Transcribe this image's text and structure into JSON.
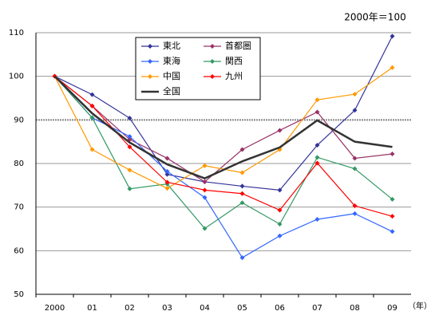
{
  "chart_data": {
    "type": "line",
    "annotation": "2000年＝100",
    "x_label": "（年）",
    "categories": [
      "2000",
      "01",
      "02",
      "03",
      "04",
      "05",
      "06",
      "07",
      "08",
      "09"
    ],
    "series": [
      {
        "name": "東北",
        "color": "#333399",
        "marker": "diamond",
        "values": [
          100,
          95.8,
          90.4,
          77.5,
          75.8,
          74.8,
          73.9,
          84.2,
          92.2,
          109.2
        ]
      },
      {
        "name": "首都圏",
        "color": "#993366",
        "marker": "diamond",
        "values": [
          100,
          93.2,
          85.5,
          81.2,
          75.8,
          83.2,
          87.6,
          91.8,
          81.2,
          82.2
        ]
      },
      {
        "name": "東海",
        "color": "#3366ff",
        "marker": "diamond",
        "values": [
          100,
          90.5,
          86.2,
          78.2,
          72.2,
          58.4,
          63.4,
          67.2,
          68.5,
          64.4
        ]
      },
      {
        "name": "関西",
        "color": "#339966",
        "marker": "diamond",
        "values": [
          100,
          90.5,
          74.2,
          75.3,
          65.1,
          71.0,
          66.1,
          81.4,
          78.8,
          71.8
        ]
      },
      {
        "name": "中国",
        "color": "#ff9900",
        "marker": "diamond",
        "values": [
          100,
          83.2,
          78.5,
          74.3,
          79.5,
          77.9,
          83.2,
          94.6,
          95.9,
          102.0
        ]
      },
      {
        "name": "九州",
        "color": "#ff0000",
        "marker": "diamond",
        "values": [
          100,
          93.2,
          83.8,
          75.7,
          73.9,
          73.1,
          69.3,
          80.1,
          70.3,
          67.9
        ]
      },
      {
        "name": "全国",
        "color": "#333333",
        "values": [
          100,
          91.5,
          84.8,
          79.8,
          76.6,
          80.5,
          83.7,
          89.9,
          85.0,
          83.8
        ]
      }
    ],
    "ylim": [
      50,
      110
    ],
    "yticks": [
      50,
      60,
      70,
      80,
      90,
      100,
      110
    ],
    "grid": true,
    "reference_line": 90
  }
}
